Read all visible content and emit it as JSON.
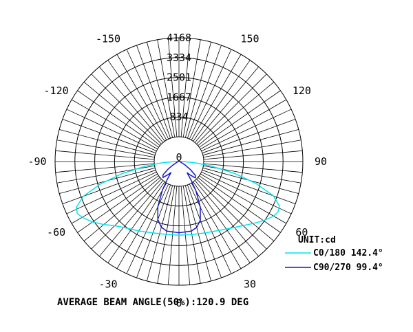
{
  "chart_data": {
    "type": "polar",
    "radial_unit": "cd",
    "radial_max": 4168,
    "radial_ticks": [
      "834",
      "1667",
      "2501",
      "3334",
      "4168"
    ],
    "angle_labels": [
      {
        "angle": 0,
        "text": "0"
      },
      {
        "angle": 30,
        "text": "30"
      },
      {
        "angle": 60,
        "text": "60"
      },
      {
        "angle": 90,
        "text": "90"
      },
      {
        "angle": 120,
        "text": "120"
      },
      {
        "angle": 150,
        "text": "150"
      },
      {
        "angle": -30,
        "text": "-30"
      },
      {
        "angle": -60,
        "text": "-60"
      },
      {
        "angle": -90,
        "text": "-90"
      },
      {
        "angle": -120,
        "text": "-120"
      },
      {
        "angle": -150,
        "text": "-150"
      }
    ],
    "unit_label": "UNIT:cd",
    "series": [
      {
        "name": "C0/180 142.4°",
        "color": "#00e5ee",
        "points": [
          [
            0,
            2480
          ],
          [
            10,
            2500
          ],
          [
            20,
            2560
          ],
          [
            30,
            2680
          ],
          [
            40,
            2900
          ],
          [
            45,
            3050
          ],
          [
            50,
            3250
          ],
          [
            55,
            3470
          ],
          [
            60,
            3680
          ],
          [
            63,
            3740
          ],
          [
            66,
            3700
          ],
          [
            70,
            3380
          ],
          [
            74,
            2700
          ],
          [
            78,
            1900
          ],
          [
            82,
            1100
          ],
          [
            86,
            500
          ],
          [
            90,
            120
          ],
          [
            -10,
            2490
          ],
          [
            -20,
            2560
          ],
          [
            -30,
            2700
          ],
          [
            -40,
            2900
          ],
          [
            -45,
            3060
          ],
          [
            -50,
            3300
          ],
          [
            -55,
            3550
          ],
          [
            -60,
            3760
          ],
          [
            -63,
            3840
          ],
          [
            -66,
            3780
          ],
          [
            -70,
            3420
          ],
          [
            -74,
            2750
          ],
          [
            -78,
            1950
          ],
          [
            -82,
            1150
          ],
          [
            -86,
            560
          ],
          [
            -90,
            140
          ]
        ]
      },
      {
        "name": "C90/270 99.4°",
        "color": "#1414c8",
        "points": [
          [
            0,
            2400
          ],
          [
            10,
            2380
          ],
          [
            15,
            2300
          ],
          [
            20,
            2100
          ],
          [
            25,
            1700
          ],
          [
            30,
            1150
          ],
          [
            33,
            760
          ],
          [
            36,
            470
          ],
          [
            40,
            600
          ],
          [
            45,
            780
          ],
          [
            50,
            720
          ],
          [
            55,
            460
          ],
          [
            60,
            250
          ],
          [
            70,
            80
          ],
          [
            80,
            30
          ],
          [
            90,
            10
          ],
          [
            -10,
            2380
          ],
          [
            -15,
            2290
          ],
          [
            -20,
            2080
          ],
          [
            -25,
            1680
          ],
          [
            -30,
            1120
          ],
          [
            -33,
            740
          ],
          [
            -36,
            460
          ],
          [
            -40,
            580
          ],
          [
            -45,
            760
          ],
          [
            -50,
            700
          ],
          [
            -55,
            450
          ],
          [
            -60,
            240
          ],
          [
            -70,
            80
          ],
          [
            -80,
            30
          ],
          [
            -90,
            10
          ]
        ]
      }
    ],
    "footer": "AVERAGE BEAM ANGLE(50%):120.9 DEG"
  }
}
